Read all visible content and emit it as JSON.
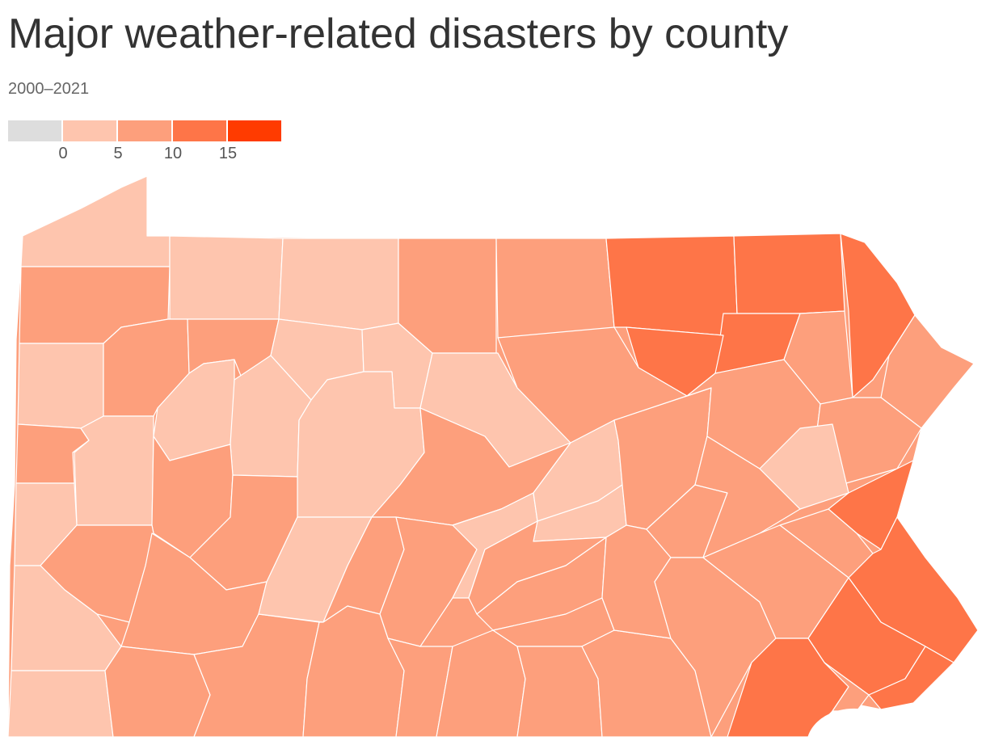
{
  "header": {
    "title": "Major weather-related disasters by county",
    "subtitle": "2000–2021"
  },
  "legend": {
    "ticks": [
      "0",
      "5",
      "10",
      "15"
    ],
    "colors": [
      "#dddddd",
      "#fec5ae",
      "#fd9f7c",
      "#fe7548",
      "#ff3b00"
    ]
  },
  "map": {
    "region": "Pennsylvania",
    "colors": {
      "no_data": "#dddddd",
      "0_5": "#fec5ae",
      "5_10": "#fd9f7c",
      "10_15": "#fe7548",
      "15_plus": "#ff3b00"
    }
  }
}
